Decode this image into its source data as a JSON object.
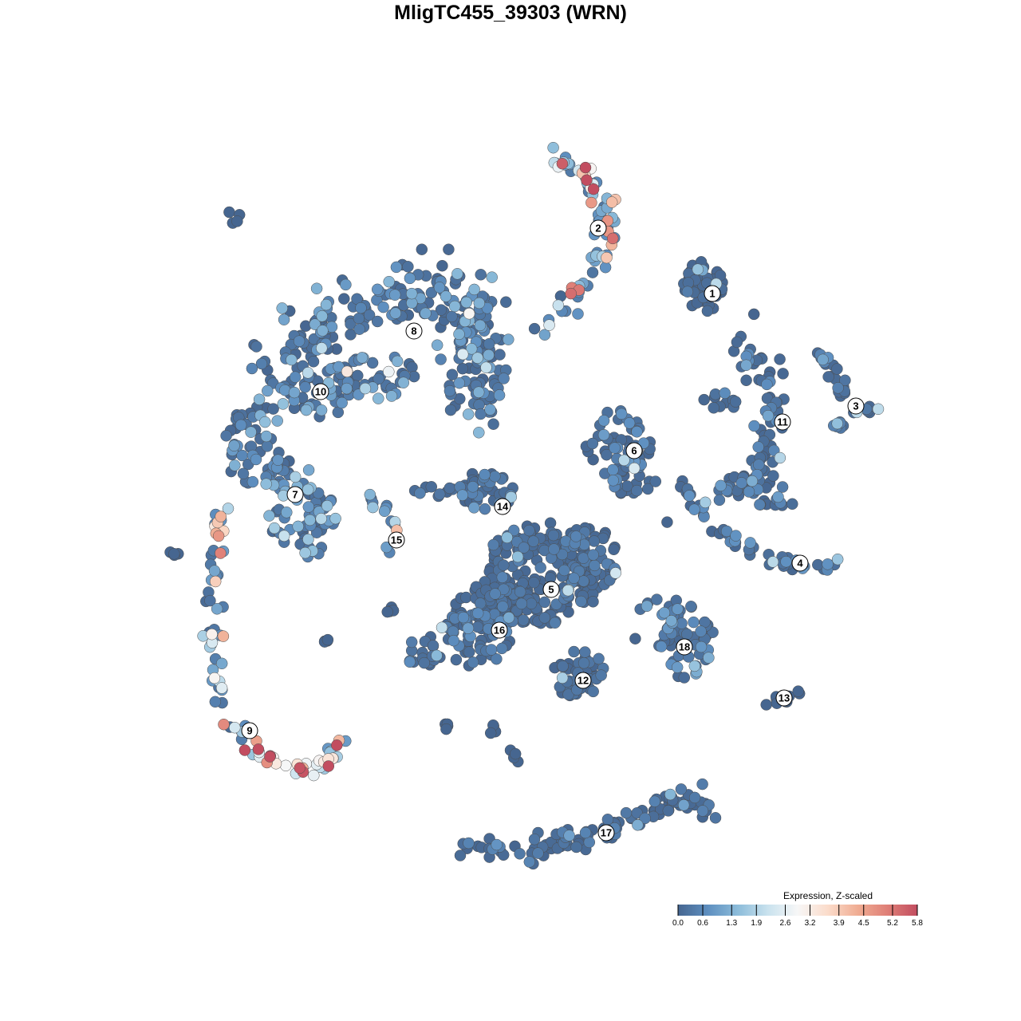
{
  "chart_data": {
    "type": "scatter",
    "title": "MligTC455_39303 (WRN)",
    "xlabel": "",
    "ylabel": "",
    "grid": false,
    "axes_shown": false,
    "cluster_labels": [
      "1",
      "2",
      "3",
      "4",
      "5",
      "6",
      "7",
      "8",
      "9",
      "10",
      "11",
      "12",
      "13",
      "14",
      "15",
      "16",
      "17",
      "18"
    ],
    "cluster_mean_expression_approx": {
      "1": 0.1,
      "2": 3.0,
      "3": 0.3,
      "4": 0.5,
      "5": 0.3,
      "6": 0.5,
      "7": 1.2,
      "8": 0.8,
      "9": 3.0,
      "10": 0.8,
      "11": 0.4,
      "12": 0.2,
      "13": 0.0,
      "14": 0.4,
      "15": 1.5,
      "16": 0.4,
      "17": 0.3,
      "18": 0.7
    },
    "colorbar": {
      "title": "Expression, Z-scaled",
      "ticks": [
        "0.0",
        "0.6",
        "1.3",
        "1.9",
        "2.6",
        "3.2",
        "3.9",
        "4.5",
        "5.2",
        "5.8"
      ],
      "range": [
        0.0,
        5.8
      ],
      "colors": [
        "#466690",
        "#5e8fc0",
        "#8cbcda",
        "#c9e2ee",
        "#f7f7f7",
        "#fbdccb",
        "#f0ad93",
        "#df7f77",
        "#c24d60"
      ],
      "legend_position": "bottom-right"
    }
  }
}
